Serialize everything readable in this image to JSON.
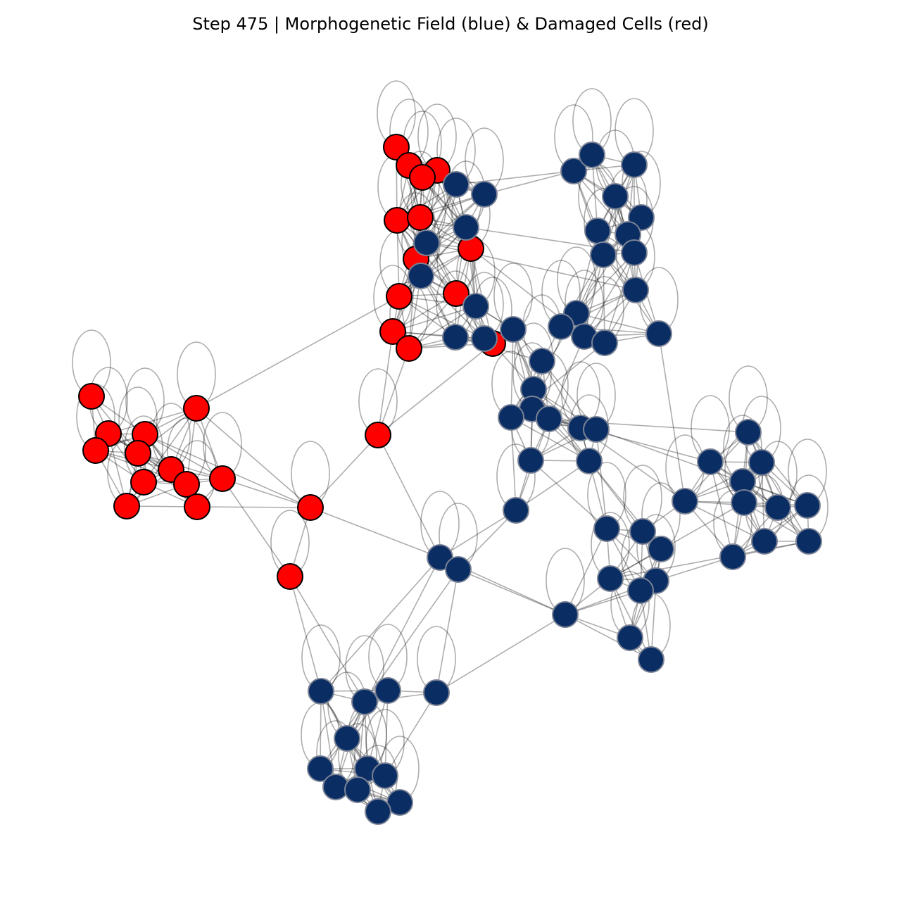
{
  "title": "Step 475 | Morphogenetic Field (blue) & Damaged Cells (red)",
  "colors": {
    "healthy_fill": "#0a2d64",
    "healthy_stroke": "#7a8294",
    "damaged_fill": "#ff0000",
    "damaged_stroke": "#000000",
    "edge": "#000000"
  },
  "chart_data": {
    "type": "network",
    "title": "Step 475 | Morphogenetic Field (blue) & Damaged Cells (red)",
    "node_count": 101,
    "damaged_count": 23,
    "healthy_count": 78,
    "self_loops": true,
    "legend": "none"
  }
}
